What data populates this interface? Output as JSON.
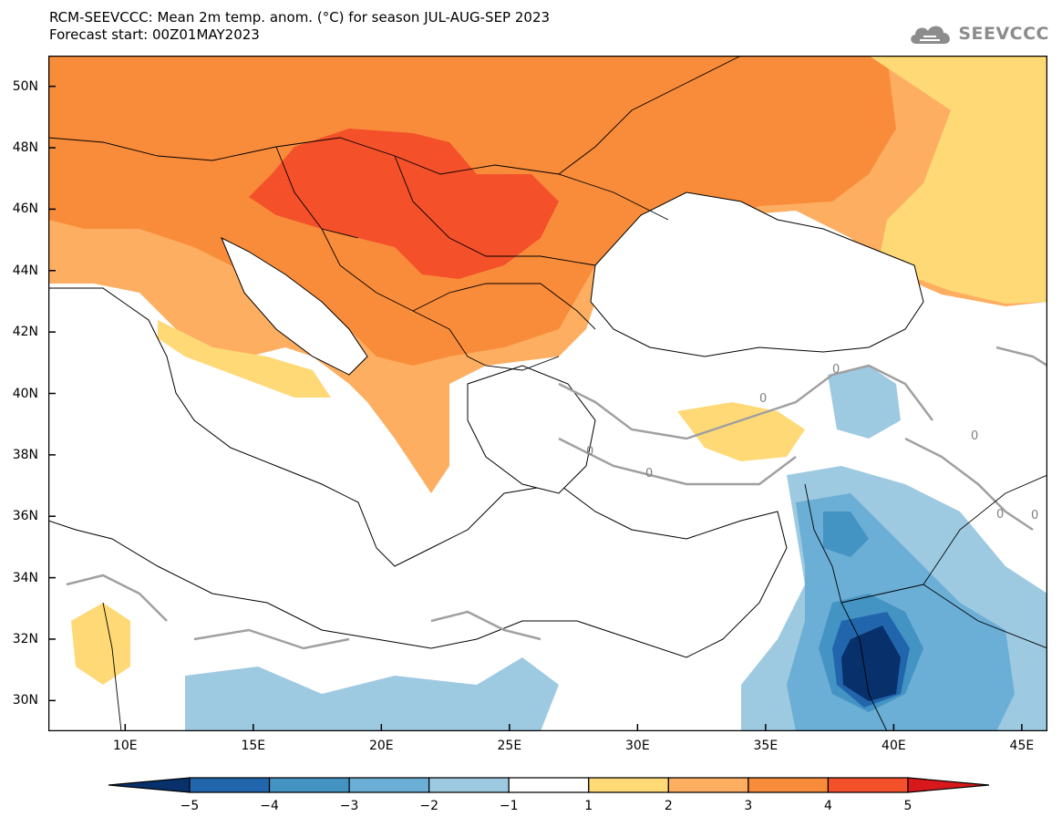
{
  "header": {
    "title_line1": "RCM-SEEVCCC: Mean 2m temp. anom. (°C) for season JUL-AUG-SEP 2023",
    "title_line2": "Forecast start: 00Z01MAY2023"
  },
  "logo": {
    "text": "SEEVCCC",
    "icon": "cloud-icon"
  },
  "map": {
    "lon_range": [
      7,
      46
    ],
    "lat_range": [
      29,
      51
    ],
    "lat_ticks": [
      {
        "value": 50,
        "label": "50N"
      },
      {
        "value": 48,
        "label": "48N"
      },
      {
        "value": 46,
        "label": "46N"
      },
      {
        "value": 44,
        "label": "44N"
      },
      {
        "value": 42,
        "label": "42N"
      },
      {
        "value": 40,
        "label": "40N"
      },
      {
        "value": 38,
        "label": "38N"
      },
      {
        "value": 36,
        "label": "36N"
      },
      {
        "value": 34,
        "label": "34N"
      },
      {
        "value": 32,
        "label": "32N"
      },
      {
        "value": 30,
        "label": "30N"
      }
    ],
    "lon_ticks": [
      {
        "value": 10,
        "label": "10E"
      },
      {
        "value": 15,
        "label": "15E"
      },
      {
        "value": 20,
        "label": "20E"
      },
      {
        "value": 25,
        "label": "25E"
      },
      {
        "value": 30,
        "label": "30E"
      },
      {
        "value": 35,
        "label": "35E"
      },
      {
        "value": 40,
        "label": "40E"
      },
      {
        "value": 45,
        "label": "45E"
      }
    ],
    "contour_labels": [
      "0",
      "0",
      "0",
      "0",
      "0",
      "0",
      "0"
    ],
    "colors": {
      "anom_-5_-4": "#08306b",
      "anom_-4_-3": "#2166ac",
      "anom_-3_-2": "#4393c3",
      "anom_-2_-1": "#9ecae1",
      "anom_-1_1": "#ffffff",
      "anom_1_2": "#fed976",
      "anom_2_3": "#fdae61",
      "anom_3_4": "#f98c3a",
      "anom_4_5": "#f4502a",
      "anom_gt5": "#d7191c",
      "sea": "#ffffff",
      "contour": "#a0a0a0",
      "border": "#000000"
    }
  },
  "colorbar": {
    "labels": [
      "−5",
      "−4",
      "−3",
      "−2",
      "−1",
      "1",
      "2",
      "3",
      "4",
      "5"
    ],
    "colors": [
      "#08306b",
      "#2166ac",
      "#4393c3",
      "#6baed6",
      "#9ecae1",
      "#ffffff",
      "#fed976",
      "#fdae61",
      "#f98c3a",
      "#f4502a",
      "#d7191c"
    ]
  }
}
